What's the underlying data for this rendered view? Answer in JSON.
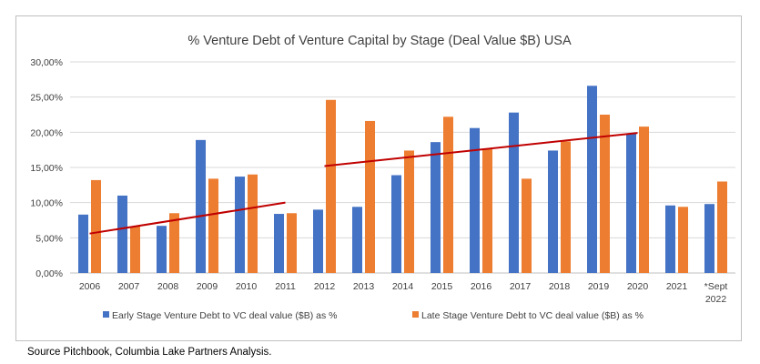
{
  "chart_data": {
    "type": "bar",
    "title": "% Venture Debt of Venture Capital by Stage (Deal Value $B) USA",
    "xlabel": "",
    "ylabel": "",
    "categories": [
      "2006",
      "2007",
      "2008",
      "2009",
      "2010",
      "2011",
      "2012",
      "2013",
      "2014",
      "2015",
      "2016",
      "2017",
      "2018",
      "2019",
      "2020",
      "2021",
      "*Sept 2022"
    ],
    "ylim": [
      0,
      30
    ],
    "ytick_values": [
      0,
      5,
      10,
      15,
      20,
      25,
      30
    ],
    "ytick_labels": [
      "0,00%",
      "5,00%",
      "10,00%",
      "15,00%",
      "20,00%",
      "25,00%",
      "30,00%"
    ],
    "grid": true,
    "legend_position": "bottom",
    "series": [
      {
        "name": "Early Stage Venture Debt to VC deal value ($B) as %",
        "color": "#4472c4",
        "values": [
          8.3,
          11.0,
          6.7,
          18.9,
          13.7,
          8.4,
          9.0,
          9.4,
          13.9,
          18.6,
          20.6,
          22.8,
          17.4,
          26.6,
          19.8,
          9.6,
          9.8
        ]
      },
      {
        "name": "Late Stage Venture Debt to VC deal value ($B) as %",
        "color": "#ed7d31",
        "values": [
          13.2,
          6.6,
          8.5,
          13.4,
          14.0,
          8.5,
          24.6,
          21.6,
          17.4,
          22.2,
          17.7,
          13.4,
          18.7,
          22.5,
          20.8,
          9.4,
          13.0
        ]
      }
    ],
    "trendlines": [
      {
        "name": "2006-2011 trend",
        "color": "#c00000",
        "from": {
          "x": "2006",
          "y": 5.6
        },
        "to": {
          "x": "2011",
          "y": 10.0
        }
      },
      {
        "name": "2012-2020 trend",
        "color": "#c00000",
        "from": {
          "x": "2012",
          "y": 15.2
        },
        "to": {
          "x": "2020",
          "y": 19.9
        }
      }
    ]
  },
  "source_note": "Source Pitchbook, Columbia Lake Partners Analysis."
}
